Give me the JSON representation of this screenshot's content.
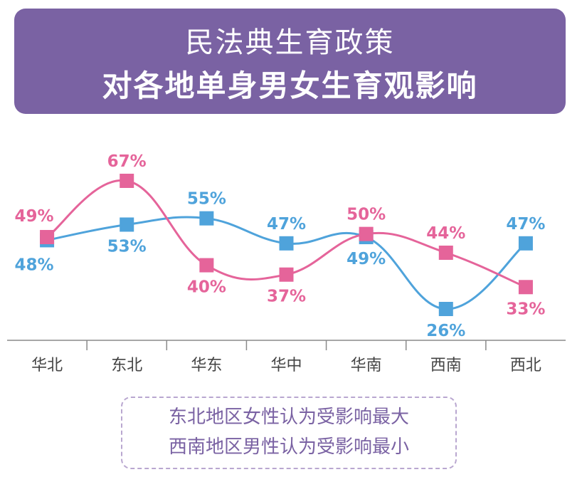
{
  "title": {
    "line1": "民法典生育政策",
    "line2": "对各地单身男女生育观影响"
  },
  "chart_data": {
    "type": "line",
    "categories": [
      "华北",
      "东北",
      "华东",
      "华中",
      "华南",
      "西南",
      "西北"
    ],
    "series": [
      {
        "key": "male",
        "color": "#4fa3db",
        "values": [
          48,
          53,
          55,
          47,
          49,
          26,
          47
        ],
        "labels": [
          "48%",
          "53%",
          "55%",
          "47%",
          "49%",
          "26%",
          "47%"
        ]
      },
      {
        "key": "female",
        "color": "#e5649a",
        "values": [
          49,
          67,
          40,
          37,
          50,
          44,
          33
        ],
        "labels": [
          "49%",
          "67%",
          "40%",
          "37%",
          "50%",
          "44%",
          "33%"
        ]
      }
    ],
    "ylim": [
      20,
      75
    ],
    "grid": false
  },
  "note": {
    "line1": "东北地区女性认为受影响最大",
    "line2": "西南地区男性认为受影响最小"
  }
}
